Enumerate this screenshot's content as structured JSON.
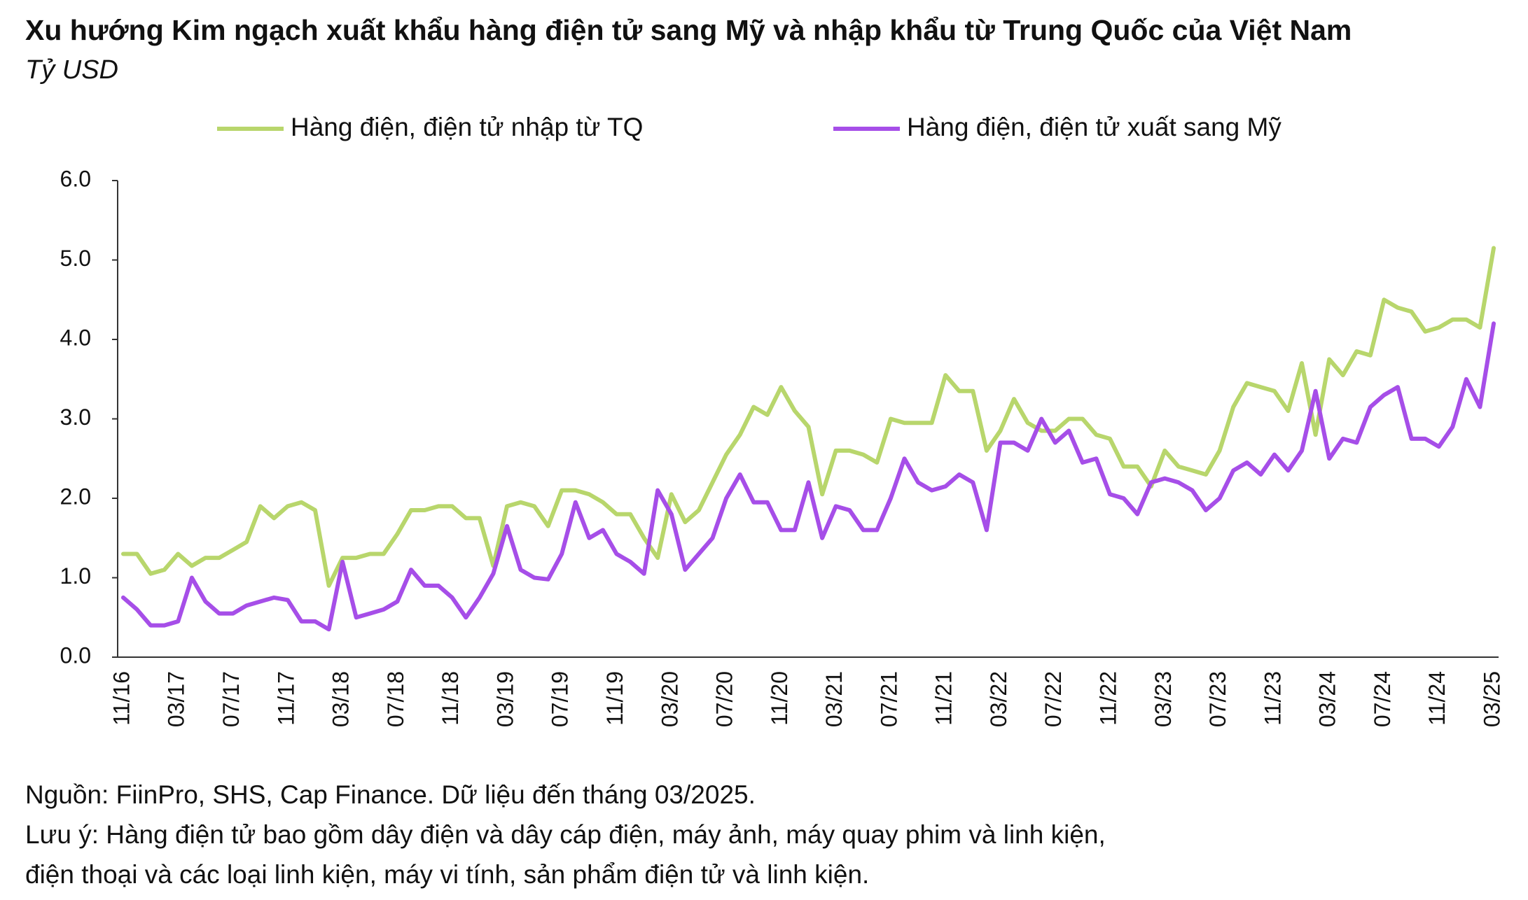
{
  "chart_data": {
    "type": "line",
    "title": "Xu hướng Kim ngạch xuất khẩu hàng điện tử sang Mỹ và nhập khẩu từ Trung Quốc của Việt Nam",
    "subtitle": "Tỷ USD",
    "categories": [
      "11/16",
      null,
      null,
      null,
      "03/17",
      null,
      null,
      null,
      "07/17",
      null,
      null,
      null,
      "11/17",
      null,
      null,
      null,
      "03/18",
      null,
      null,
      null,
      "07/18",
      null,
      null,
      null,
      "11/18",
      null,
      null,
      null,
      "03/19",
      null,
      null,
      null,
      "07/19",
      null,
      null,
      null,
      "11/19",
      null,
      null,
      null,
      "03/20",
      null,
      null,
      null,
      "07/20",
      null,
      null,
      null,
      "11/20",
      null,
      null,
      null,
      "03/21",
      null,
      null,
      null,
      "07/21",
      null,
      null,
      null,
      "11/21",
      null,
      null,
      null,
      "03/22",
      null,
      null,
      null,
      "07/22",
      null,
      null,
      null,
      "11/22",
      null,
      null,
      null,
      "03/23",
      null,
      null,
      null,
      "07/23",
      null,
      null,
      null,
      "11/23",
      null,
      null,
      null,
      "03/24",
      null,
      null,
      null,
      "07/24",
      null,
      null,
      null,
      "11/24",
      null,
      null,
      null,
      "03/25"
    ],
    "series": [
      {
        "name": "Hàng điện, điện tử nhập từ TQ",
        "color": "#b8d66c",
        "values": [
          1.3,
          1.3,
          1.05,
          1.1,
          1.3,
          1.15,
          1.25,
          1.25,
          1.35,
          1.45,
          1.9,
          1.75,
          1.9,
          1.95,
          1.85,
          0.9,
          1.25,
          1.25,
          1.3,
          1.3,
          1.55,
          1.85,
          1.85,
          1.9,
          1.9,
          1.75,
          1.75,
          1.15,
          1.9,
          1.95,
          1.9,
          1.65,
          2.1,
          2.1,
          2.05,
          1.95,
          1.8,
          1.8,
          1.5,
          1.25,
          2.05,
          1.7,
          1.85,
          2.2,
          2.55,
          2.8,
          3.15,
          3.05,
          3.4,
          3.1,
          2.9,
          2.05,
          2.6,
          2.6,
          2.55,
          2.45,
          3.0,
          2.95,
          2.95,
          2.95,
          3.55,
          3.35,
          3.35,
          2.6,
          2.85,
          3.25,
          2.95,
          2.85,
          2.85,
          3.0,
          3.0,
          2.8,
          2.75,
          2.4,
          2.4,
          2.15,
          2.6,
          2.4,
          2.35,
          2.3,
          2.6,
          3.15,
          3.45,
          3.4,
          3.35,
          3.1,
          3.7,
          2.8,
          3.75,
          3.55,
          3.85,
          3.8,
          4.5,
          4.4,
          4.35,
          4.1,
          4.15,
          4.25,
          4.25,
          4.15,
          5.15
        ]
      },
      {
        "name": "Hàng điện, điện tử xuất sang Mỹ",
        "color": "#a64ee8",
        "values": [
          0.75,
          0.6,
          0.4,
          0.4,
          0.45,
          1.0,
          0.7,
          0.55,
          0.55,
          0.65,
          0.7,
          0.75,
          0.72,
          0.45,
          0.45,
          0.35,
          1.2,
          0.5,
          0.55,
          0.6,
          0.7,
          1.1,
          0.9,
          0.9,
          0.75,
          0.5,
          0.75,
          1.05,
          1.65,
          1.1,
          1.0,
          0.98,
          1.3,
          1.95,
          1.5,
          1.6,
          1.3,
          1.2,
          1.05,
          2.1,
          1.8,
          1.1,
          1.3,
          1.5,
          2.0,
          2.3,
          1.95,
          1.95,
          1.6,
          1.6,
          2.2,
          1.5,
          1.9,
          1.85,
          1.6,
          1.6,
          2.0,
          2.5,
          2.2,
          2.1,
          2.15,
          2.3,
          2.2,
          1.6,
          2.7,
          2.7,
          2.6,
          3.0,
          2.7,
          2.85,
          2.45,
          2.5,
          2.05,
          2.0,
          1.8,
          2.2,
          2.25,
          2.2,
          2.1,
          1.85,
          2.0,
          2.35,
          2.45,
          2.3,
          2.55,
          2.35,
          2.6,
          3.35,
          2.5,
          2.75,
          2.7,
          3.15,
          3.3,
          3.4,
          2.75,
          2.75,
          2.65,
          2.9,
          3.5,
          3.15,
          4.2
        ]
      }
    ],
    "ylim": [
      0,
      6
    ],
    "yticks": [
      {
        "value": 0,
        "label": "0.0"
      },
      {
        "value": 1,
        "label": "1.0"
      },
      {
        "value": 2,
        "label": "2.0"
      },
      {
        "value": 3,
        "label": "3.0"
      },
      {
        "value": 4,
        "label": "4.0"
      },
      {
        "value": 5,
        "label": "5.0"
      },
      {
        "value": 6,
        "label": "6.0"
      }
    ],
    "grid": false,
    "legend": "top",
    "notes": [
      "Nguồn: FiinPro, SHS, Cap Finance. Dữ liệu đến tháng 03/2025.",
      "Lưu ý: Hàng điện tử bao gồm dây điện và dây cáp điện, máy ảnh, máy quay phim và linh kiện,",
      "điện thoại và các loại linh kiện, máy vi tính, sản phẩm điện tử và linh kiện."
    ]
  }
}
